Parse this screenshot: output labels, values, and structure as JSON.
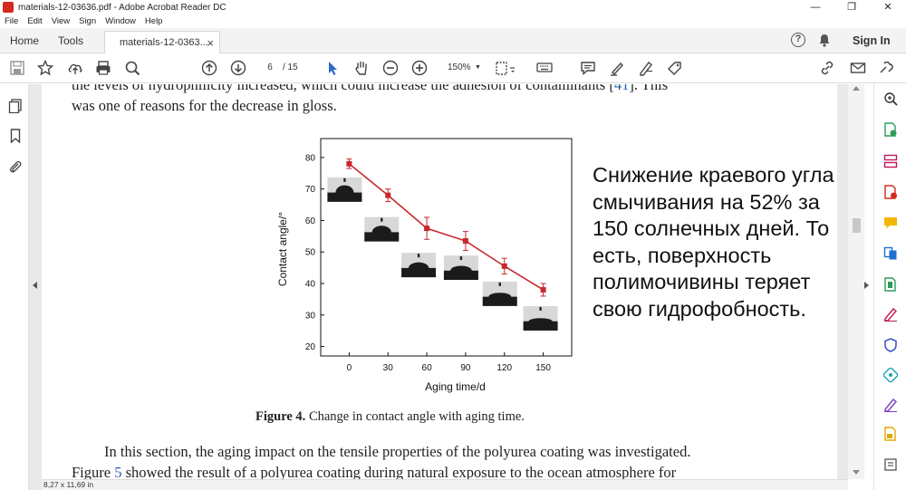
{
  "window": {
    "title": "materials-12-03636.pdf - Adobe Acrobat Reader DC",
    "controls": [
      "—",
      "❐",
      "✕"
    ]
  },
  "menu": [
    "File",
    "Edit",
    "View",
    "Sign",
    "Window",
    "Help"
  ],
  "tabs": {
    "home": "Home",
    "tools": "Tools",
    "document": "materials-12-0363...",
    "close": "×",
    "signin": "Sign In",
    "help": "?"
  },
  "toolbar": {
    "page_current": "6",
    "page_total": "/ 15",
    "zoom": "150%"
  },
  "document": {
    "para1_line1": "the levels of hydrophilicity increased, which could increase the adhesion of contaminants [",
    "para1_cite": "41",
    "para1_line1_end": "]. This",
    "para1_line2": "was one of reasons for the decrease in gloss.",
    "caption_bold": "Figure 4.",
    "caption_text": " Change in contact angle with aging time.",
    "para2_line1": "In this section, the aging impact on the tensile properties of the polyurea coating was investigated.",
    "para2_line2_start": "Figure ",
    "para2_cite": "5",
    "para2_line2_end": " showed the result of a polyurea coating during natural exposure to the ocean atmosphere for"
  },
  "annotation": "Снижение краевого угла смычивания на 52% за 150 солнечных дней. То есть, поверхность полимочивины теряет свою гидрофобность.",
  "status": {
    "page_size": "8,27 x 11,69 in"
  },
  "colors": {
    "series": "#c8282d",
    "acrobat_red": "#d42b1e"
  },
  "chart_data": {
    "type": "line",
    "title": "",
    "xlabel": "Aging time/d",
    "ylabel": "Contact angle/°",
    "x": [
      0,
      30,
      60,
      90,
      120,
      150
    ],
    "xticks": [
      "0",
      "30",
      "60",
      "90",
      "120",
      "150"
    ],
    "yticks": [
      "20",
      "30",
      "40",
      "50",
      "60",
      "70",
      "80"
    ],
    "ylim": [
      17,
      86
    ],
    "grid": false,
    "series": [
      {
        "values": [
          78,
          68,
          57.5,
          53.5,
          45.5,
          38
        ],
        "error": [
          1.5,
          2,
          3.5,
          3,
          2.5,
          2
        ]
      }
    ],
    "inset_images": [
      "droplet-0d",
      "droplet-30d",
      "droplet-60d",
      "droplet-90d",
      "droplet-120d",
      "droplet-150d"
    ]
  }
}
